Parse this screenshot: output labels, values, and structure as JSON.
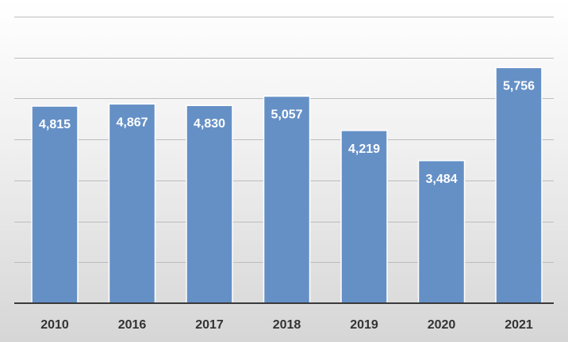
{
  "chart_data": {
    "type": "bar",
    "categories": [
      "2010",
      "2016",
      "2017",
      "2018",
      "2019",
      "2020",
      "2021"
    ],
    "values": [
      4815,
      4867,
      4830,
      5057,
      4219,
      3484,
      5756
    ],
    "value_labels": [
      "4,815",
      "4,867",
      "4,830",
      "5,057",
      "4,219",
      "3,484",
      "5,756"
    ],
    "ylim": [
      0,
      7000
    ],
    "y_tick_step": 1000,
    "grid": true,
    "legend": "none",
    "colors": {
      "bar": "#6590c6",
      "bar_border": "#ffffff",
      "data_label": "#ffffff",
      "axis": "#3a3a3a",
      "grid": "#bdbdbd"
    }
  }
}
